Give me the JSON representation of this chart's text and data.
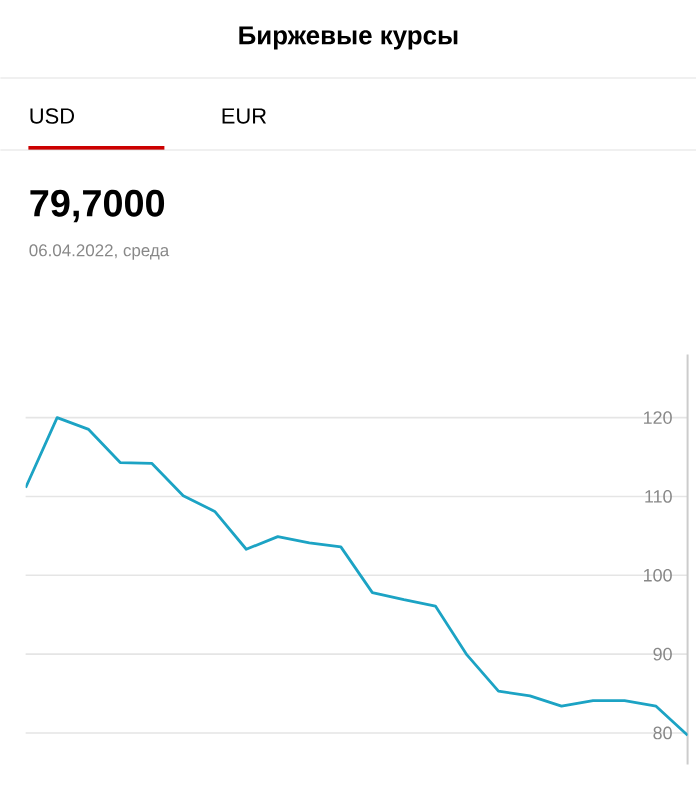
{
  "chart_data": {
    "type": "line",
    "title": "Биржевые курсы",
    "subtitle": "79,7000",
    "annotations": [
      "USD",
      "EUR",
      "06.04.2022, среда"
    ],
    "categories": [
      null,
      null,
      null,
      null,
      null,
      null,
      null,
      null,
      null,
      null,
      null,
      null,
      null,
      null,
      null,
      null,
      null,
      null,
      null,
      null,
      null,
      null
    ],
    "series": [
      {
        "color": "#1ca3c4",
        "values": [
          111.1,
          120,
          118.5,
          114.3,
          114.2,
          110.1,
          108.1,
          103.3,
          104.9,
          104.1,
          103.6,
          97.8,
          96.9,
          96.1,
          89.9,
          85.3,
          84.7,
          83.4,
          84.1,
          84.1,
          83.4,
          79.7
        ]
      }
    ],
    "ylim": [
      76,
      128
    ],
    "yticks": [
      80,
      90,
      100,
      110,
      120
    ],
    "grid": "y",
    "tick_labels": "y",
    "marker": "none",
    "line_style": "solid"
  }
}
